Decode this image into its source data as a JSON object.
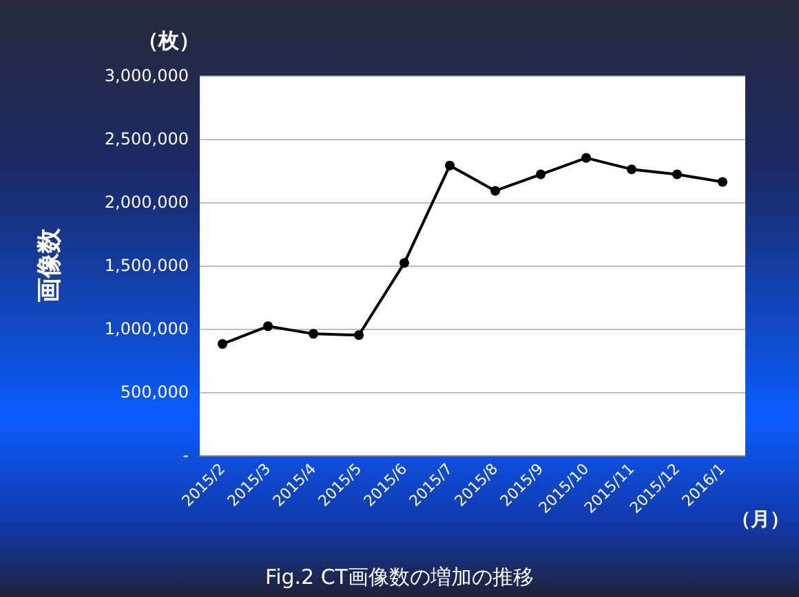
{
  "chart_data": {
    "type": "line",
    "title": "Fig.2 CT画像数の増加の推移",
    "xlabel": "（月）",
    "ylabel": "画像数",
    "annotations": [
      "（枚）"
    ],
    "categories": [
      "2015/2",
      "2015/3",
      "2015/4",
      "2015/5",
      "2015/6",
      "2015/7",
      "2015/8",
      "2015/9",
      "2015/10",
      "2015/11",
      "2015/12",
      "2016/1"
    ],
    "series": [
      {
        "color": "#000000",
        "values": [
          880000,
          1020000,
          960000,
          950000,
          1520000,
          2290000,
          2090000,
          2220000,
          2350000,
          2260000,
          2220000,
          2160000
        ]
      }
    ],
    "ylim": [
      0,
      3000000
    ],
    "yticks": [
      {
        "value": 0,
        "label": "-"
      },
      {
        "value": 500000,
        "label": "500,000"
      },
      {
        "value": 1000000,
        "label": "1,000,000"
      },
      {
        "value": 1500000,
        "label": "1,500,000"
      },
      {
        "value": 2000000,
        "label": "2,000,000"
      },
      {
        "value": 2500000,
        "label": "2,500,000"
      },
      {
        "value": 3000000,
        "label": "3,000,000"
      }
    ],
    "grid": "y",
    "marker": "circle",
    "line_style": "solid"
  }
}
